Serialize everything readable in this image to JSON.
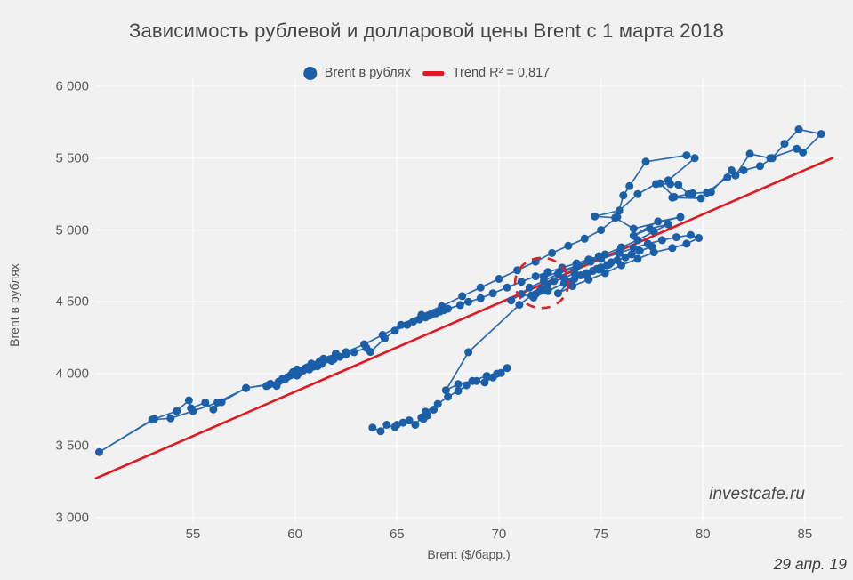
{
  "title": "Зависимость рублевой и долларовой цены Brent с 1 марта 2018",
  "legend": {
    "series_label": "Brent в рублях",
    "trend_label": "Trend R² = 0,817"
  },
  "watermark": "investcafe.ru",
  "date_note": "29 апр. 19",
  "colors": {
    "background": "#f1f1f2",
    "grid": "#fafafa",
    "point_blue": "#1a5fa8",
    "line_blue": "#2a6ab0",
    "trend_red": "#e1181f",
    "ellipse_red": "#d8232a"
  },
  "chart_data": {
    "type": "scatter",
    "title": "Зависимость рублевой и долларовой цены Brent с 1 марта 2018",
    "xlabel": "Brent ($/барр.)",
    "ylabel": "Brent в рублях",
    "xlim": [
      50.1,
      86.8
    ],
    "ylim": [
      3000,
      6100
    ],
    "grid": true,
    "legend_position": "top-center",
    "x_ticks": [
      55,
      60,
      65,
      70,
      75,
      80,
      85
    ],
    "y_ticks": [
      3000,
      3500,
      4000,
      4500,
      5000,
      5500,
      6000
    ],
    "y_tick_labels": [
      "3 000",
      "3 500",
      "4 000",
      "4 500",
      "5 000",
      "5 500",
      "6 000"
    ],
    "trend": {
      "label": "Trend R² = 0,817",
      "r2": "0,817",
      "x1": 50.2,
      "y1": 3270,
      "x2": 86.4,
      "y2": 5504
    },
    "annotation_ellipse": {
      "cx": 72.1,
      "cy": 4632,
      "rx": 1.31,
      "ry": 175
    },
    "series": [
      {
        "name": "Brent в рублях",
        "mode": "lines+markers",
        "points": [
          [
            63.8,
            3625
          ],
          [
            64.2,
            3600
          ],
          [
            64.5,
            3645
          ],
          [
            64.9,
            3630
          ],
          [
            65.3,
            3660
          ],
          [
            65.0,
            3645
          ],
          [
            65.6,
            3675
          ],
          [
            65.9,
            3645
          ],
          [
            66.2,
            3695
          ],
          [
            66.5,
            3710
          ],
          [
            66.3,
            3685
          ],
          [
            66.8,
            3750
          ],
          [
            66.4,
            3735
          ],
          [
            67.0,
            3790
          ],
          [
            67.5,
            3840
          ],
          [
            68.0,
            3880
          ],
          [
            68.4,
            3920
          ],
          [
            68.9,
            3950
          ],
          [
            69.3,
            3940
          ],
          [
            69.7,
            3975
          ],
          [
            70.1,
            4005
          ],
          [
            70.4,
            4040
          ],
          [
            69.9,
            4000
          ],
          [
            69.4,
            3985
          ],
          [
            68.7,
            3950
          ],
          [
            68.0,
            3928
          ],
          [
            67.4,
            3885
          ],
          [
            68.5,
            4150
          ],
          [
            71.0,
            4480
          ],
          [
            71.6,
            4545
          ],
          [
            72.1,
            4590
          ],
          [
            71.8,
            4555
          ],
          [
            72.4,
            4620
          ],
          [
            72.0,
            4575
          ],
          [
            72.7,
            4645
          ],
          [
            73.2,
            4665
          ],
          [
            73.7,
            4700
          ],
          [
            74.3,
            4685
          ],
          [
            74.9,
            4725
          ],
          [
            75.4,
            4760
          ],
          [
            75.0,
            4800
          ],
          [
            75.9,
            4840
          ],
          [
            76.6,
            4875
          ],
          [
            77.3,
            4905
          ],
          [
            78.0,
            4930
          ],
          [
            78.7,
            4950
          ],
          [
            79.4,
            4965
          ],
          [
            79.8,
            4945
          ],
          [
            79.2,
            4905
          ],
          [
            78.5,
            4875
          ],
          [
            77.6,
            4845
          ],
          [
            76.8,
            4800
          ],
          [
            76.0,
            4755
          ],
          [
            75.2,
            4700
          ],
          [
            74.4,
            4655
          ],
          [
            73.6,
            4610
          ],
          [
            72.9,
            4560
          ],
          [
            73.5,
            4640
          ],
          [
            74.2,
            4690
          ],
          [
            74.8,
            4730
          ],
          [
            75.5,
            4775
          ],
          [
            76.2,
            4810
          ],
          [
            76.9,
            4855
          ],
          [
            77.5,
            4885
          ],
          [
            76.5,
            4830
          ],
          [
            75.8,
            4790
          ],
          [
            75.0,
            4740
          ],
          [
            74.3,
            4700
          ],
          [
            73.7,
            4660
          ],
          [
            74.6,
            4715
          ],
          [
            75.3,
            4755
          ],
          [
            74.0,
            4685
          ],
          [
            73.2,
            4630
          ],
          [
            72.4,
            4575
          ],
          [
            71.7,
            4530
          ],
          [
            71.1,
            4555
          ],
          [
            70.6,
            4510
          ],
          [
            71.5,
            4600
          ],
          [
            72.2,
            4645
          ],
          [
            72.9,
            4695
          ],
          [
            73.8,
            4740
          ],
          [
            74.5,
            4780
          ],
          [
            75.2,
            4830
          ],
          [
            76.0,
            4880
          ],
          [
            76.8,
            4930
          ],
          [
            77.6,
            4990
          ],
          [
            78.3,
            5040
          ],
          [
            77.4,
            5010
          ],
          [
            76.6,
            4960
          ],
          [
            77.8,
            5060
          ],
          [
            78.9,
            5090
          ],
          [
            76.6,
            5010
          ],
          [
            75.7,
            5085
          ],
          [
            74.7,
            5095
          ],
          [
            75.9,
            5135
          ],
          [
            76.8,
            5250
          ],
          [
            77.7,
            5320
          ],
          [
            78.4,
            5320
          ],
          [
            78.8,
            5315
          ],
          [
            79.3,
            5250
          ],
          [
            78.5,
            5225
          ],
          [
            79.9,
            5220
          ],
          [
            80.2,
            5260
          ],
          [
            81.2,
            5365
          ],
          [
            82.0,
            5415
          ],
          [
            82.8,
            5445
          ],
          [
            83.4,
            5500
          ],
          [
            84.0,
            5600
          ],
          [
            84.7,
            5700
          ],
          [
            85.8,
            5668
          ],
          [
            84.9,
            5540
          ],
          [
            84.6,
            5565
          ],
          [
            83.3,
            5500
          ],
          [
            82.3,
            5530
          ],
          [
            81.6,
            5380
          ],
          [
            81.4,
            5415
          ],
          [
            80.4,
            5265
          ],
          [
            79.5,
            5255
          ],
          [
            78.6,
            5230
          ],
          [
            77.9,
            5325
          ],
          [
            78.3,
            5345
          ],
          [
            79.6,
            5500
          ],
          [
            79.2,
            5520
          ],
          [
            77.2,
            5475
          ],
          [
            76.4,
            5305
          ],
          [
            76.1,
            5240
          ],
          [
            75.8,
            5090
          ],
          [
            75.0,
            5000
          ],
          [
            74.2,
            4940
          ],
          [
            73.4,
            4890
          ],
          [
            72.6,
            4840
          ],
          [
            71.8,
            4780
          ],
          [
            70.9,
            4720
          ],
          [
            70.0,
            4660
          ],
          [
            69.1,
            4600
          ],
          [
            68.2,
            4540
          ],
          [
            67.2,
            4470
          ],
          [
            66.2,
            4410
          ],
          [
            65.2,
            4340
          ],
          [
            64.3,
            4270
          ],
          [
            63.4,
            4205
          ],
          [
            62.5,
            4150
          ],
          [
            61.7,
            4100
          ],
          [
            60.9,
            4050
          ],
          [
            60.2,
            4005
          ],
          [
            59.5,
            3960
          ],
          [
            60.1,
            4030
          ],
          [
            60.8,
            4070
          ],
          [
            61.4,
            4105
          ],
          [
            62.0,
            4140
          ],
          [
            61.2,
            4085
          ],
          [
            60.5,
            4038
          ],
          [
            59.8,
            3992
          ],
          [
            60.4,
            4022
          ],
          [
            61.0,
            4062
          ],
          [
            60.0,
            4000
          ],
          [
            59.2,
            3945
          ],
          [
            58.6,
            3915
          ],
          [
            59.4,
            3968
          ],
          [
            59.9,
            4012
          ],
          [
            60.6,
            4045
          ],
          [
            61.3,
            4092
          ],
          [
            60.3,
            4018
          ],
          [
            59.6,
            3975
          ],
          [
            58.8,
            3930
          ],
          [
            57.6,
            3900
          ],
          [
            56.2,
            3800
          ],
          [
            55.0,
            3740
          ],
          [
            53.9,
            3690
          ],
          [
            53.0,
            3680
          ],
          [
            50.4,
            3455
          ],
          [
            53.1,
            3685
          ],
          [
            54.2,
            3740
          ],
          [
            54.8,
            3815
          ],
          [
            54.9,
            3760
          ],
          [
            55.6,
            3800
          ],
          [
            56.0,
            3752
          ],
          [
            56.4,
            3802
          ],
          [
            57.6,
            3902
          ],
          [
            58.7,
            3922
          ],
          [
            59.1,
            3916
          ],
          [
            60.1,
            3988
          ],
          [
            60.7,
            4030
          ],
          [
            61.3,
            4068
          ],
          [
            61.9,
            4100
          ],
          [
            62.5,
            4135
          ],
          [
            61.8,
            4090
          ],
          [
            61.1,
            4052
          ],
          [
            62.2,
            4118
          ],
          [
            62.9,
            4150
          ],
          [
            63.5,
            4180
          ],
          [
            63.7,
            4152
          ],
          [
            64.4,
            4245
          ],
          [
            64.9,
            4300
          ],
          [
            65.5,
            4340
          ],
          [
            66.1,
            4378
          ],
          [
            66.6,
            4405
          ],
          [
            67.1,
            4432
          ],
          [
            66.4,
            4392
          ],
          [
            65.8,
            4362
          ],
          [
            66.9,
            4420
          ],
          [
            67.5,
            4452
          ],
          [
            68.1,
            4478
          ],
          [
            67.3,
            4442
          ],
          [
            66.7,
            4412
          ],
          [
            68.5,
            4500
          ],
          [
            69.1,
            4525
          ],
          [
            69.7,
            4560
          ],
          [
            70.4,
            4600
          ],
          [
            71.1,
            4640
          ],
          [
            71.8,
            4678
          ],
          [
            72.4,
            4708
          ],
          [
            73.1,
            4738
          ],
          [
            73.8,
            4768
          ],
          [
            74.4,
            4795
          ],
          [
            74.9,
            4818
          ],
          [
            74.5,
            4788
          ],
          [
            73.9,
            4755
          ],
          [
            72.2,
            4672
          ]
        ]
      }
    ]
  }
}
